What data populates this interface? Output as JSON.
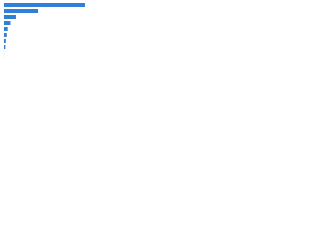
{
  "chart_data": {
    "type": "hbar",
    "categories": [
      null,
      null,
      null,
      null,
      null,
      null,
      null,
      null
    ],
    "values": [
      88,
      37,
      13,
      7,
      4,
      3,
      2,
      1.5
    ],
    "color": "#2f7ed8",
    "xlim": [
      0,
      100
    ]
  }
}
